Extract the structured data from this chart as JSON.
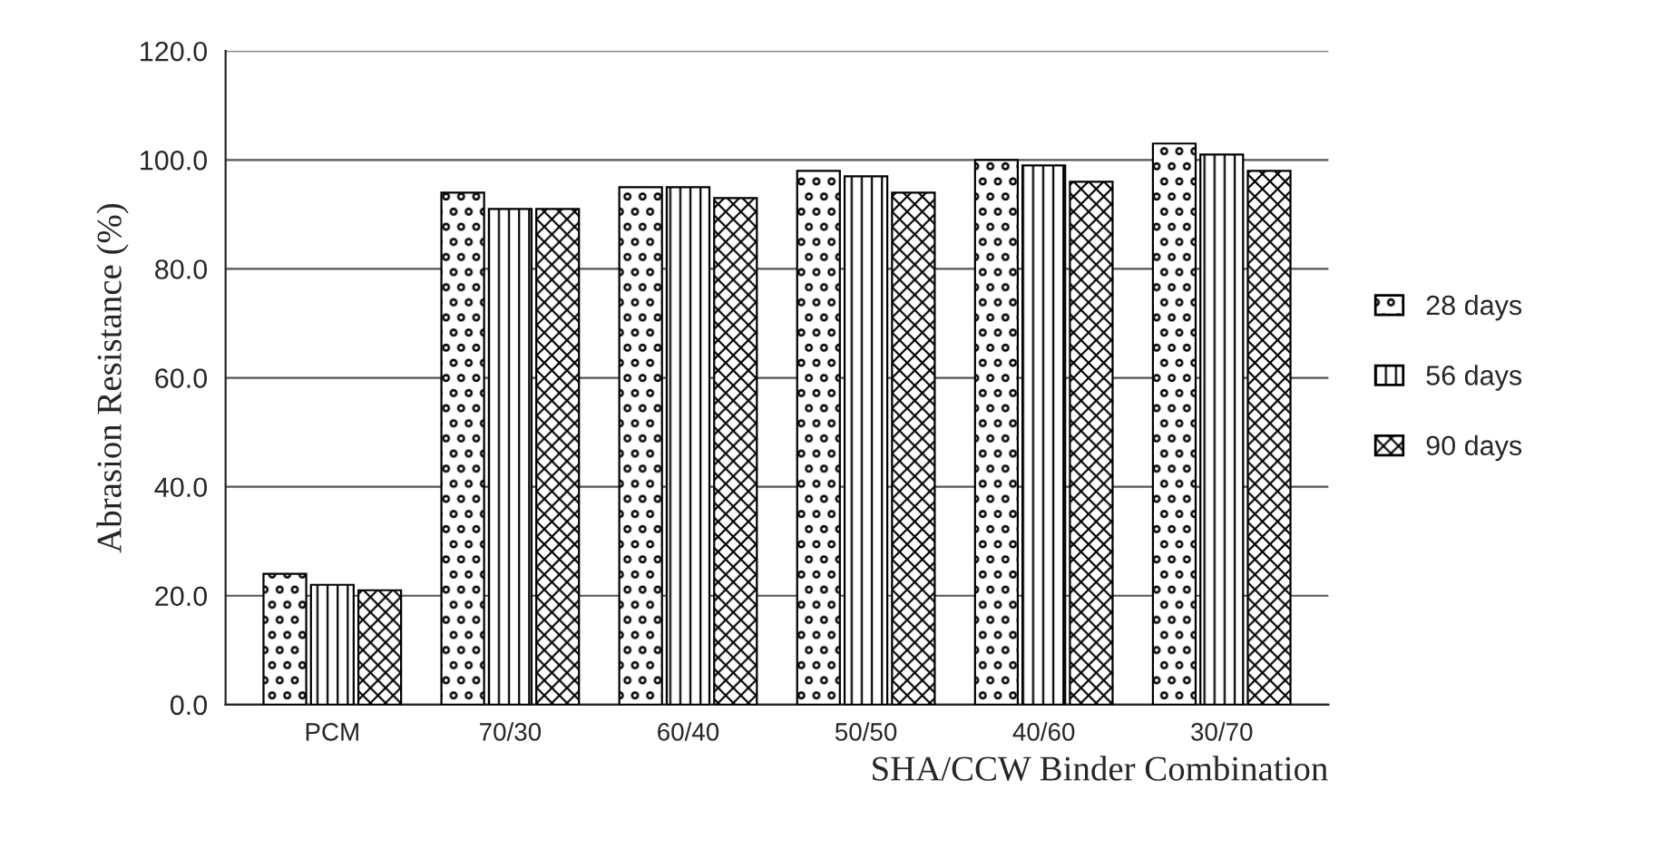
{
  "chart_data": {
    "type": "bar",
    "xlabel": "SHA/CCW Binder Combination",
    "ylabel": "Abrasion Resistance (%)",
    "categories": [
      "PCM",
      "70/30",
      "60/40",
      "50/50",
      "40/60",
      "30/70"
    ],
    "series": [
      {
        "name": "28 days",
        "color": "#000000",
        "values": [
          24,
          94,
          95,
          98,
          100,
          103
        ]
      },
      {
        "name": "56 days",
        "color": "#000000",
        "values": [
          22,
          91,
          95,
          97,
          99,
          101
        ]
      },
      {
        "name": "90 days",
        "color": "#000000",
        "values": [
          21,
          91,
          93,
          94,
          96,
          98
        ]
      }
    ],
    "ylim": [
      0,
      120
    ],
    "yticks": [
      {
        "value": 0,
        "label": "0.0"
      },
      {
        "value": 20,
        "label": "20.0"
      },
      {
        "value": 40,
        "label": "40.0"
      },
      {
        "value": 60,
        "label": "60.0"
      },
      {
        "value": 80,
        "label": "80.0"
      },
      {
        "value": 100,
        "label": "100.0"
      },
      {
        "value": 120,
        "label": "120.0"
      }
    ],
    "grid": "y",
    "legend": "right"
  }
}
